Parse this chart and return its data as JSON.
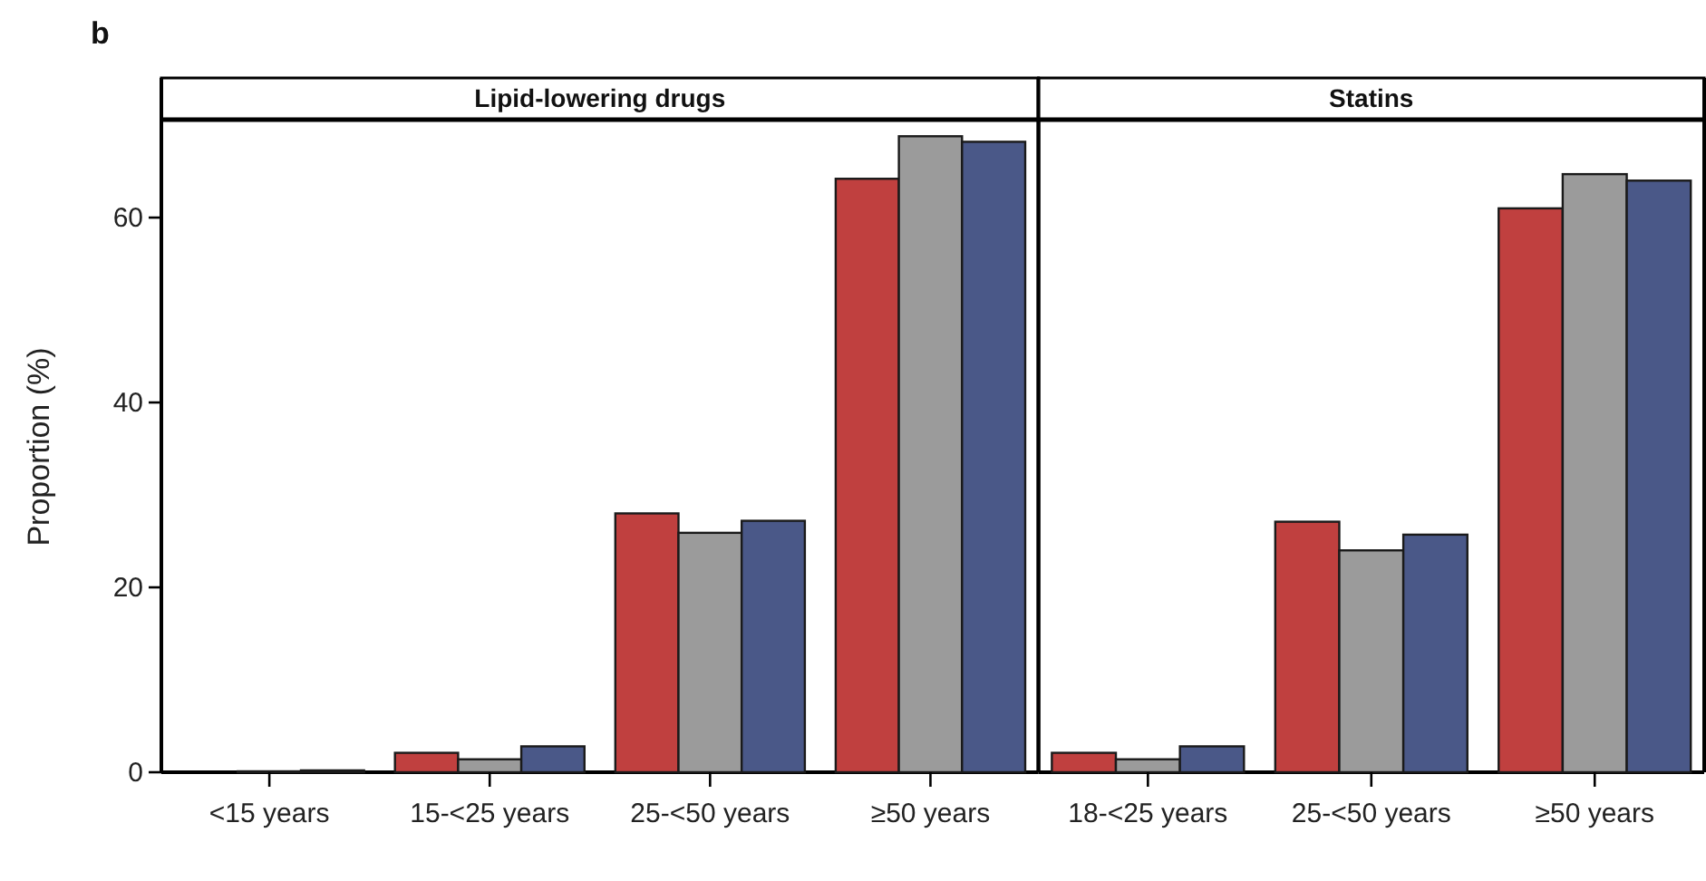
{
  "chart_data": [
    {
      "type": "bar",
      "title": "Lipid-lowering drugs",
      "ylabel": "Proportion (%)",
      "annotations": [
        "b"
      ],
      "categories": [
        "<15 years",
        "15-<25 years",
        "25-<50 years",
        "≥50 years"
      ],
      "ylim": [
        0,
        70.4
      ],
      "yticks": [
        0,
        20,
        40,
        60
      ],
      "series": [
        {
          "color": "#c0403f",
          "values": [
            0,
            2.1,
            28.0,
            64.2
          ]
        },
        {
          "color": "#9b9b9b",
          "values": [
            0.1,
            1.4,
            25.9,
            68.8
          ]
        },
        {
          "color": "#4a5888",
          "values": [
            0.2,
            2.8,
            27.2,
            68.2
          ]
        }
      ]
    },
    {
      "type": "bar",
      "title": "Statins",
      "tick_labels": "x",
      "categories": [
        "18-<25 years",
        "25-<50 years",
        "≥50 years"
      ],
      "ylim": [
        0,
        70.4
      ],
      "yticks": [
        0,
        20,
        40,
        60
      ],
      "series": [
        {
          "color": "#c0403f",
          "values": [
            2.1,
            27.1,
            61.0
          ]
        },
        {
          "color": "#9b9b9b",
          "values": [
            1.4,
            24.0,
            64.7
          ]
        },
        {
          "color": "#4a5888",
          "values": [
            2.8,
            25.7,
            64.0
          ]
        }
      ]
    }
  ]
}
